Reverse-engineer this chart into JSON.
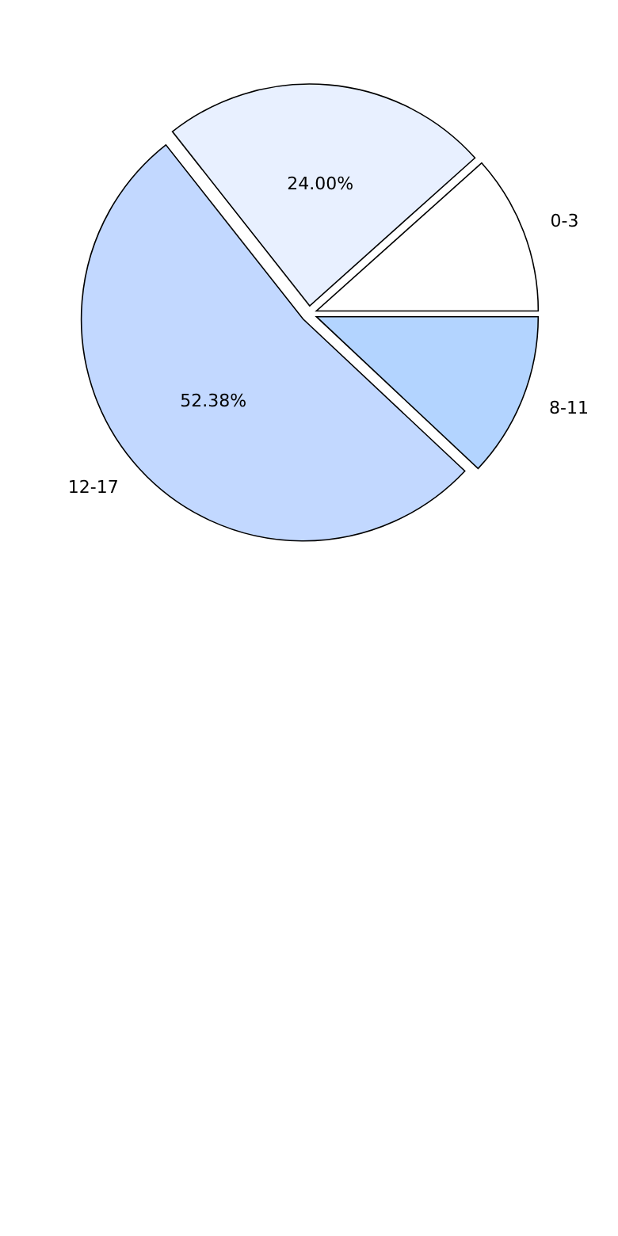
{
  "chart_data": {
    "type": "pie",
    "categories": [
      "8-11",
      "12-17",
      null,
      "0-3"
    ],
    "values": [
      12,
      52.38,
      24,
      11.62
    ],
    "colors": [
      "#b3d4ff",
      "#c2d8ff",
      "#e8f0ff",
      "#ffffff"
    ],
    "value_labels": [
      null,
      "52.38%",
      "24.00%",
      null
    ]
  }
}
